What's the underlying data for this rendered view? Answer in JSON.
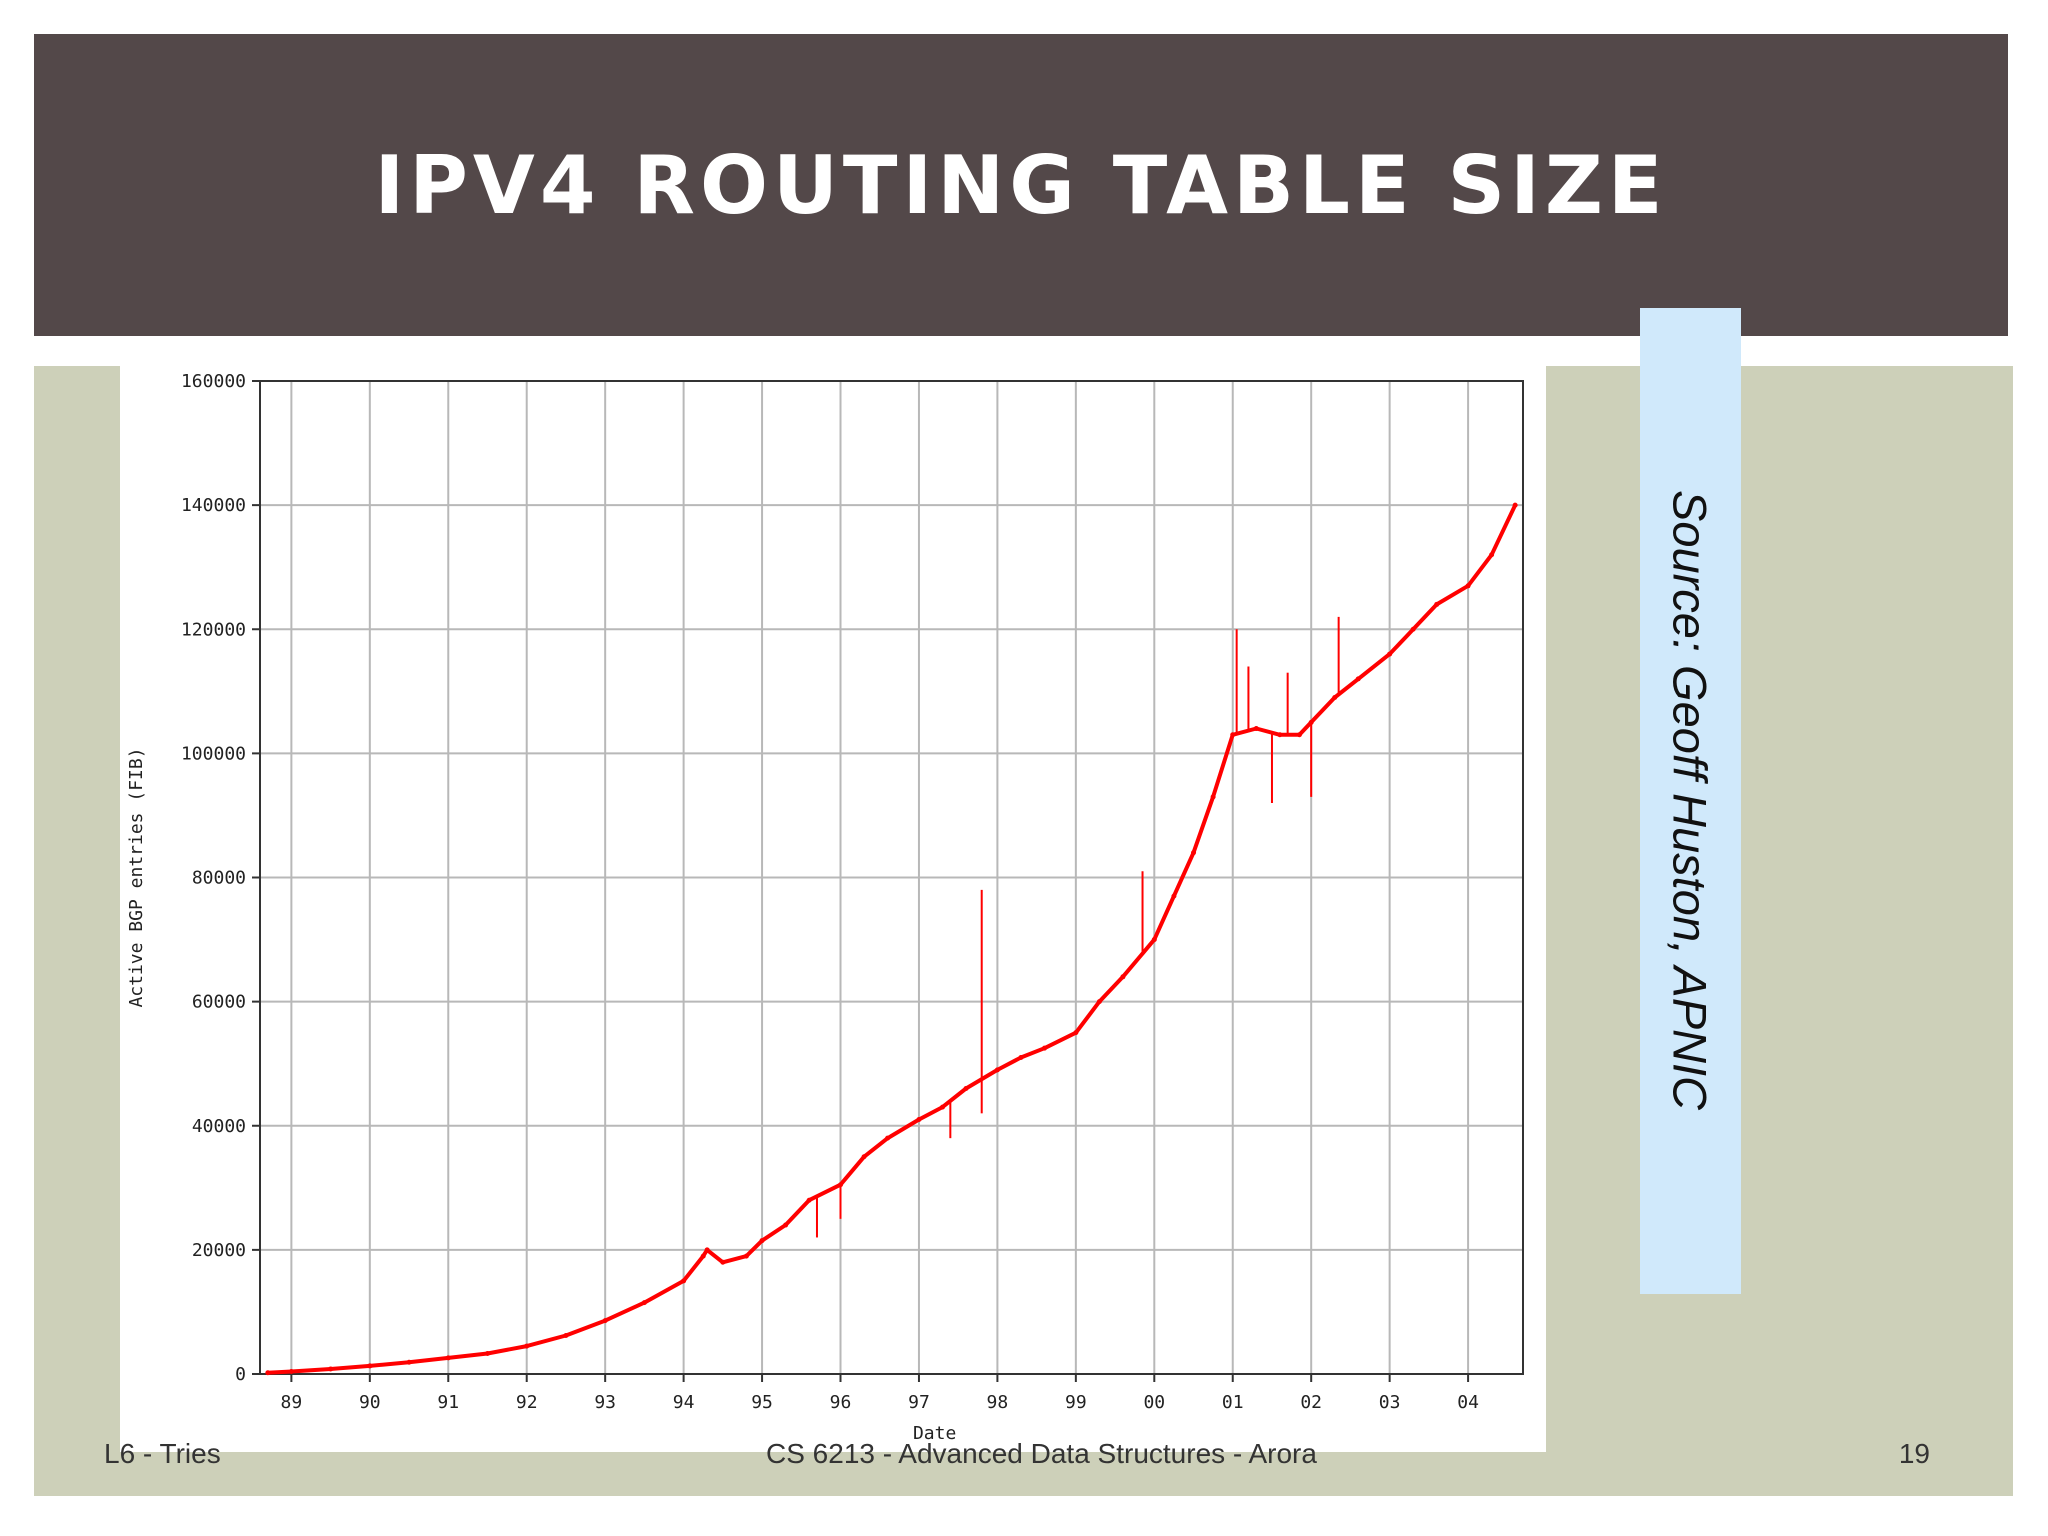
{
  "slide": {
    "title": "IPV4 ROUTING TABLE SIZE",
    "source": "Source: Geoff Huston, APNIC"
  },
  "footer": {
    "left": "L6 - Tries",
    "center": "CS 6213 - Advanced Data Structures - Arora",
    "right": "19"
  },
  "colors": {
    "title_band": "#534849",
    "content_band": "#cdd0b9",
    "source_box": "#d0e9fb",
    "series": "#ff0000"
  },
  "chart_data": {
    "type": "line",
    "title": "",
    "xlabel": "Date",
    "ylabel": "Active BGP entries (FIB)",
    "xlim": [
      1988.6,
      2004.7
    ],
    "ylim": [
      0,
      160000
    ],
    "grid": true,
    "x_ticks": [
      {
        "value": 1989,
        "label": "89"
      },
      {
        "value": 1990,
        "label": "90"
      },
      {
        "value": 1991,
        "label": "91"
      },
      {
        "value": 1992,
        "label": "92"
      },
      {
        "value": 1993,
        "label": "93"
      },
      {
        "value": 1994,
        "label": "94"
      },
      {
        "value": 1995,
        "label": "95"
      },
      {
        "value": 1996,
        "label": "96"
      },
      {
        "value": 1997,
        "label": "97"
      },
      {
        "value": 1998,
        "label": "98"
      },
      {
        "value": 1999,
        "label": "99"
      },
      {
        "value": 2000,
        "label": "00"
      },
      {
        "value": 2001,
        "label": "01"
      },
      {
        "value": 2002,
        "label": "02"
      },
      {
        "value": 2003,
        "label": "03"
      },
      {
        "value": 2004,
        "label": "04"
      }
    ],
    "y_ticks": [
      {
        "value": 0,
        "label": "0"
      },
      {
        "value": 20000,
        "label": "20000"
      },
      {
        "value": 40000,
        "label": "40000"
      },
      {
        "value": 60000,
        "label": "60000"
      },
      {
        "value": 80000,
        "label": "80000"
      },
      {
        "value": 100000,
        "label": "100000"
      },
      {
        "value": 120000,
        "label": "120000"
      },
      {
        "value": 140000,
        "label": "140000"
      },
      {
        "value": 160000,
        "label": "160000"
      }
    ],
    "series": [
      {
        "x": [
          1988.7,
          1989,
          1989.5,
          1990,
          1990.5,
          1991,
          1991.5,
          1992,
          1992.5,
          1993,
          1993.5,
          1994,
          1994.25,
          1994.3,
          1994.5,
          1994.8,
          1995,
          1995.3,
          1995.6,
          1996,
          1996.3,
          1996.6,
          1997,
          1997.3,
          1997.6,
          1998,
          1998.3,
          1998.6,
          1999,
          1999.3,
          1999.6,
          2000,
          2000.25,
          2000.5,
          2000.75,
          2001,
          2001.3,
          2001.6,
          2001.85,
          2002,
          2002.3,
          2002.6,
          2003,
          2003.3,
          2003.6,
          2004,
          2004.3,
          2004.6
        ],
        "y": [
          200,
          400,
          800,
          1300,
          1900,
          2600,
          3300,
          4500,
          6200,
          8600,
          11500,
          15000,
          19000,
          20000,
          18000,
          19000,
          21500,
          24000,
          28000,
          30500,
          35000,
          38000,
          41000,
          43000,
          46000,
          49000,
          51000,
          52500,
          55000,
          60000,
          64000,
          70000,
          77000,
          84000,
          93000,
          103000,
          104000,
          103000,
          103000,
          105000,
          109000,
          112000,
          116000,
          120000,
          124000,
          127000,
          132000,
          140000
        ]
      }
    ],
    "spikes": [
      {
        "x": 1997.8,
        "y": 78000
      },
      {
        "x": 1997.8,
        "y": 42000
      },
      {
        "x": 2001.05,
        "y": 120000
      },
      {
        "x": 2001.2,
        "y": 114000
      },
      {
        "x": 2001.5,
        "y": 92000
      },
      {
        "x": 2001.7,
        "y": 113000
      },
      {
        "x": 2002.0,
        "y": 93000
      },
      {
        "x": 2002.35,
        "y": 122000
      },
      {
        "x": 1999.85,
        "y": 81000
      },
      {
        "x": 1997.4,
        "y": 38000
      },
      {
        "x": 1995.7,
        "y": 22000
      },
      {
        "x": 1996.0,
        "y": 25000
      }
    ]
  }
}
